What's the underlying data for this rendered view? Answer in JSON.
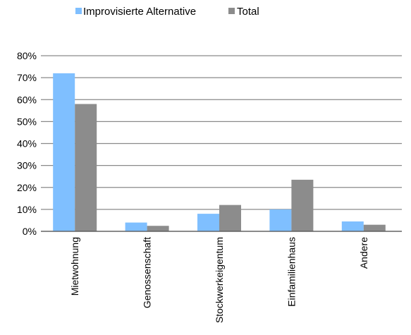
{
  "chart_data": {
    "type": "bar",
    "categories": [
      "Mietwohnung",
      "Genossenschaft",
      "Stockwerkeigentum",
      "Einfamilienhaus",
      "Andere"
    ],
    "series": [
      {
        "name": "Improvisierte Alternative",
        "values": [
          72,
          4,
          8,
          10,
          4.5
        ],
        "color": "#7fbfff"
      },
      {
        "name": "Total",
        "values": [
          58,
          2.5,
          12,
          23.5,
          3
        ],
        "color": "#8c8c8c"
      }
    ],
    "yticks": [
      "0%",
      "10%",
      "20%",
      "30%",
      "40%",
      "50%",
      "60%",
      "70%",
      "80%"
    ],
    "ylim": [
      0,
      80
    ],
    "grid": true,
    "legend_position": "top",
    "title": "",
    "xlabel": "",
    "ylabel": ""
  }
}
